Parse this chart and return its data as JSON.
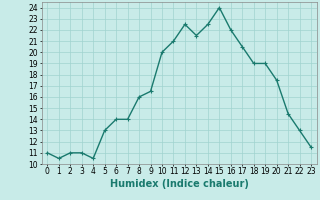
{
  "x": [
    0,
    1,
    2,
    3,
    4,
    5,
    6,
    7,
    8,
    9,
    10,
    11,
    12,
    13,
    14,
    15,
    16,
    17,
    18,
    19,
    20,
    21,
    22,
    23
  ],
  "y": [
    11,
    10.5,
    11,
    11,
    10.5,
    13,
    14,
    14,
    16,
    16.5,
    20,
    21,
    22.5,
    21.5,
    22.5,
    24,
    22,
    20.5,
    19,
    19,
    17.5,
    14.5,
    13,
    11.5
  ],
  "line_color": "#1a7a6e",
  "marker": "+",
  "marker_size": 3,
  "bg_color": "#c8ebe8",
  "grid_color": "#a0d4cf",
  "xlabel": "Humidex (Indice chaleur)",
  "xlim": [
    -0.5,
    23.5
  ],
  "ylim": [
    10,
    24.5
  ],
  "yticks": [
    10,
    11,
    12,
    13,
    14,
    15,
    16,
    17,
    18,
    19,
    20,
    21,
    22,
    23,
    24
  ],
  "xticks": [
    0,
    1,
    2,
    3,
    4,
    5,
    6,
    7,
    8,
    9,
    10,
    11,
    12,
    13,
    14,
    15,
    16,
    17,
    18,
    19,
    20,
    21,
    22,
    23
  ],
  "tick_fontsize": 5.5,
  "xlabel_fontsize": 7,
  "line_width": 1.0
}
